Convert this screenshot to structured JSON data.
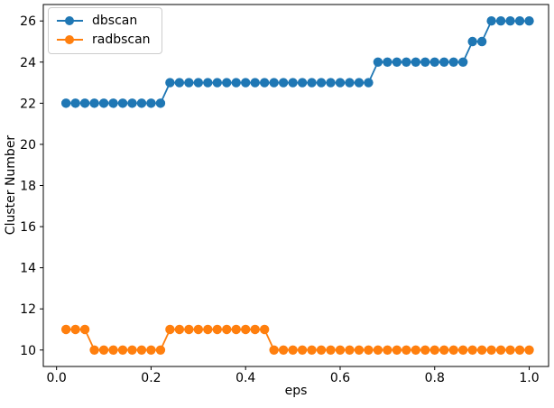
{
  "figure": {
    "background": "#ffffff",
    "text_color": "#000000",
    "spine_color": "#000000"
  },
  "chart_data": {
    "type": "line",
    "title": "",
    "xlabel": "eps",
    "ylabel": "Cluster Number",
    "xlim": [
      -0.028,
      1.041
    ],
    "ylim": [
      9.2,
      26.8
    ],
    "grid": false,
    "legend_position": "upper-left",
    "xticks": [
      {
        "v": 0.0,
        "label": "0.0"
      },
      {
        "v": 0.2,
        "label": "0.2"
      },
      {
        "v": 0.4,
        "label": "0.4"
      },
      {
        "v": 0.6,
        "label": "0.6"
      },
      {
        "v": 0.8,
        "label": "0.8"
      },
      {
        "v": 1.0,
        "label": "1.0"
      }
    ],
    "yticks": [
      {
        "v": 10,
        "label": "10"
      },
      {
        "v": 12,
        "label": "12"
      },
      {
        "v": 14,
        "label": "14"
      },
      {
        "v": 16,
        "label": "16"
      },
      {
        "v": 18,
        "label": "18"
      },
      {
        "v": 20,
        "label": "20"
      },
      {
        "v": 22,
        "label": "22"
      },
      {
        "v": 24,
        "label": "24"
      },
      {
        "v": 26,
        "label": "26"
      }
    ],
    "x": [
      0.02,
      0.04,
      0.06,
      0.08,
      0.1,
      0.12,
      0.14,
      0.16,
      0.18,
      0.2,
      0.22,
      0.24,
      0.26,
      0.28,
      0.3,
      0.32,
      0.34,
      0.36,
      0.38,
      0.4,
      0.42,
      0.44,
      0.46,
      0.48,
      0.5,
      0.52,
      0.54,
      0.56,
      0.58,
      0.6,
      0.62,
      0.64,
      0.66,
      0.68,
      0.7,
      0.72,
      0.74,
      0.76,
      0.78,
      0.8,
      0.82,
      0.84,
      0.86,
      0.88,
      0.9,
      0.92,
      0.94,
      0.96,
      0.98,
      1.0
    ],
    "series": [
      {
        "name": "dbscan",
        "color": "#1f77b4",
        "marker": "circle",
        "values": [
          22,
          22,
          22,
          22,
          22,
          22,
          22,
          22,
          22,
          22,
          22,
          23,
          23,
          23,
          23,
          23,
          23,
          23,
          23,
          23,
          23,
          23,
          23,
          23,
          23,
          23,
          23,
          23,
          23,
          23,
          23,
          23,
          23,
          24,
          24,
          24,
          24,
          24,
          24,
          24,
          24,
          24,
          24,
          25,
          25,
          26,
          26,
          26,
          26,
          26
        ]
      },
      {
        "name": "radbscan",
        "color": "#ff7f0e",
        "marker": "circle",
        "values": [
          11,
          11,
          11,
          10,
          10,
          10,
          10,
          10,
          10,
          10,
          10,
          11,
          11,
          11,
          11,
          11,
          11,
          11,
          11,
          11,
          11,
          11,
          10,
          10,
          10,
          10,
          10,
          10,
          10,
          10,
          10,
          10,
          10,
          10,
          10,
          10,
          10,
          10,
          10,
          10,
          10,
          10,
          10,
          10,
          10,
          10,
          10,
          10,
          10,
          10
        ]
      }
    ]
  }
}
